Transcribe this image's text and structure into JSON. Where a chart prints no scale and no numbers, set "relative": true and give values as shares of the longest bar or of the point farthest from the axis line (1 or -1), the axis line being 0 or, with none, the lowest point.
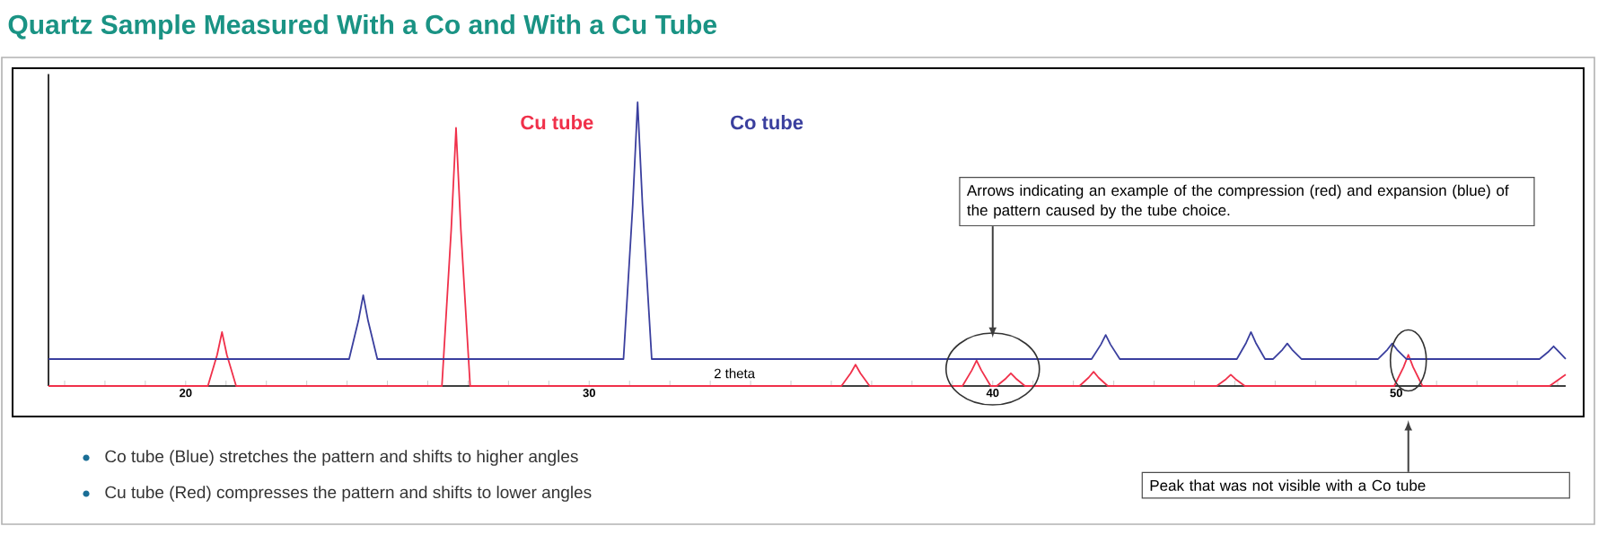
{
  "chart_data": {
    "type": "line",
    "title": "Quartz Sample Measured With a Co and With a Cu Tube",
    "xlabel": "2 theta",
    "relative": true,
    "xlim": [
      16.6,
      54.2
    ],
    "xticks": [
      {
        "value": 17,
        "label": null
      },
      {
        "value": 18,
        "label": null
      },
      {
        "value": 19,
        "label": null
      },
      20,
      {
        "value": 21,
        "label": null
      },
      {
        "value": 22,
        "label": null
      },
      {
        "value": 23,
        "label": null
      },
      {
        "value": 24,
        "label": null
      },
      {
        "value": 25,
        "label": null
      },
      {
        "value": 26,
        "label": null
      },
      {
        "value": 27,
        "label": null
      },
      {
        "value": 28,
        "label": null
      },
      {
        "value": 29,
        "label": null
      },
      30,
      {
        "value": 31,
        "label": null
      },
      {
        "value": 32,
        "label": null
      },
      {
        "value": 33,
        "label": null
      },
      {
        "value": 34,
        "label": null
      },
      {
        "value": 35,
        "label": null
      },
      {
        "value": 36,
        "label": null
      },
      {
        "value": 37,
        "label": null
      },
      {
        "value": 38,
        "label": null
      },
      {
        "value": 39,
        "label": null
      },
      40,
      {
        "value": 41,
        "label": null
      },
      {
        "value": 42,
        "label": null
      },
      {
        "value": 43,
        "label": null
      },
      {
        "value": 44,
        "label": null
      },
      {
        "value": 45,
        "label": null
      },
      {
        "value": 46,
        "label": null
      },
      {
        "value": 47,
        "label": null
      },
      {
        "value": 48,
        "label": null
      },
      {
        "value": 49,
        "label": null
      },
      50,
      {
        "value": 51,
        "label": null
      },
      {
        "value": 52,
        "label": null
      },
      {
        "value": 53,
        "label": null
      },
      {
        "value": 54,
        "label": null
      }
    ],
    "series": [
      {
        "name": "Cu tube",
        "color": "#f0304a",
        "x": [
          16.6,
          20.55,
          20.78,
          20.9,
          21.02,
          21.25,
          26.35,
          26.58,
          26.7,
          26.82,
          27.05,
          36.25,
          36.48,
          36.6,
          36.72,
          36.95,
          39.25,
          39.48,
          39.6,
          39.72,
          39.95,
          40.1,
          40.33,
          40.45,
          40.57,
          40.8,
          42.15,
          42.38,
          42.5,
          42.62,
          42.85,
          45.55,
          45.78,
          45.9,
          46.02,
          46.25,
          49.95,
          50.18,
          50.3,
          50.42,
          50.65,
          53.8,
          54.2
        ],
        "values": [
          0,
          0,
          0.11,
          0.19,
          0.11,
          0,
          0,
          0.55,
          0.91,
          0.55,
          0,
          0,
          0.045,
          0.075,
          0.045,
          0,
          0,
          0.055,
          0.09,
          0.055,
          0,
          0,
          0.027,
          0.045,
          0.027,
          0,
          0,
          0.03,
          0.05,
          0.03,
          0,
          0,
          0.024,
          0.04,
          0.024,
          0,
          0,
          0.066,
          0.11,
          0.066,
          0,
          0,
          0.04
        ]
      },
      {
        "name": "Co tube",
        "color": "#3a3f9e",
        "x": [
          16.6,
          24.05,
          24.28,
          24.4,
          24.52,
          24.75,
          30.85,
          31.08,
          31.2,
          31.32,
          31.55,
          42.45,
          42.68,
          42.8,
          42.92,
          43.15,
          46.05,
          46.28,
          46.4,
          46.52,
          46.75,
          46.95,
          47.18,
          47.3,
          47.42,
          47.65,
          49.55,
          49.78,
          49.9,
          50.02,
          50.25,
          53.55,
          53.78,
          53.9,
          54.02,
          54.2
        ],
        "values": [
          0.095,
          0.095,
          0.23,
          0.32,
          0.23,
          0.095,
          0.095,
          0.64,
          1,
          0.64,
          0.095,
          0.095,
          0.146,
          0.18,
          0.146,
          0.095,
          0.095,
          0.152,
          0.19,
          0.152,
          0.095,
          0.095,
          0.128,
          0.15,
          0.128,
          0.095,
          0.095,
          0.128,
          0.15,
          0.128,
          0.095,
          0.095,
          0.122,
          0.14,
          0.122,
          0.095
        ]
      }
    ],
    "annotations": [
      "Arrows indicating an example of the compression (red) and expansion (blue) of the pattern caused by the tube choice.",
      "Peak that was not visible with a Co tube",
      "Co tube (Blue) stretches the pattern and shifts to higher angles",
      "Cu tube (Red) compresses the pattern and shifts to lower angles"
    ]
  }
}
